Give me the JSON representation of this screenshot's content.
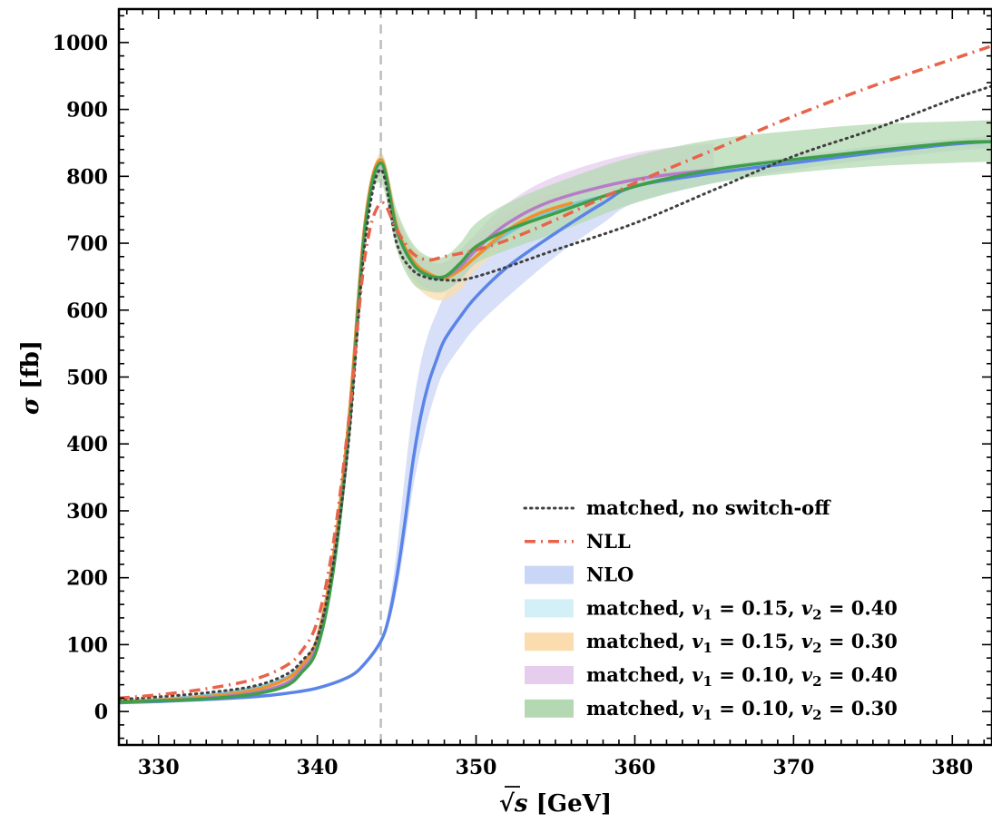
{
  "chart_data": {
    "type": "line",
    "xlabel": "√s [GeV]",
    "xlabel_main": "[GeV]",
    "xlabel_sqrt_var": "s",
    "ylabel_symbol": "σ",
    "ylabel_unit": "[fb]",
    "xlim": [
      327.5,
      382.5
    ],
    "ylim": [
      -50,
      1050
    ],
    "x_ticks": [
      330,
      340,
      350,
      360,
      370,
      380
    ],
    "y_ticks": [
      0,
      100,
      200,
      300,
      400,
      500,
      600,
      700,
      800,
      900,
      1000
    ],
    "threshold_line_x": 344,
    "grid": false,
    "legend_position": "lower-right",
    "series": [
      {
        "name": "matched, no switch-off",
        "style": "dotted",
        "color": "#404040",
        "x": [
          327.5,
          330,
          333,
          336,
          338,
          339,
          340,
          341,
          342,
          343,
          344,
          345,
          346,
          347,
          348,
          349,
          350,
          352,
          355,
          360,
          365,
          370,
          375,
          380,
          382.5
        ],
        "y": [
          18,
          22,
          28,
          38,
          55,
          75,
          110,
          220,
          410,
          700,
          810,
          700,
          660,
          648,
          645,
          645,
          650,
          665,
          690,
          730,
          780,
          830,
          870,
          915,
          935
        ]
      },
      {
        "name": "NLL",
        "style": "dashdot",
        "color": "#e8634a",
        "x": [
          327.5,
          330,
          333,
          336,
          338,
          339,
          340,
          341,
          342,
          343,
          344,
          345,
          346,
          347,
          348,
          350,
          352,
          355,
          360,
          365,
          370,
          375,
          380,
          382.5
        ],
        "y": [
          20,
          25,
          34,
          48,
          68,
          90,
          135,
          250,
          440,
          680,
          760,
          720,
          685,
          675,
          680,
          690,
          705,
          735,
          790,
          840,
          890,
          935,
          975,
          995
        ]
      },
      {
        "name": "NLO",
        "style": "band",
        "color": "#5b84e8",
        "band_color": "#c9d6f6",
        "x": [
          327.5,
          330,
          333,
          336,
          338,
          340,
          342,
          343,
          344,
          344.5,
          345,
          345.5,
          346,
          346.5,
          347,
          347.5,
          348,
          349,
          350,
          352,
          355,
          358,
          360,
          365,
          370,
          375,
          380,
          382.5
        ],
        "y": [
          13,
          15,
          18,
          22,
          27,
          35,
          52,
          72,
          105,
          140,
          200,
          280,
          370,
          440,
          490,
          525,
          555,
          590,
          620,
          665,
          715,
          760,
          785,
          805,
          820,
          835,
          848,
          852
        ],
        "lower": [
          13,
          15,
          18,
          22,
          27,
          35,
          52,
          72,
          105,
          130,
          180,
          250,
          330,
          390,
          440,
          480,
          510,
          545,
          575,
          620,
          680,
          730,
          760,
          790,
          810,
          825,
          838,
          842
        ],
        "upper": [
          13,
          15,
          18,
          22,
          27,
          35,
          52,
          72,
          105,
          155,
          240,
          350,
          450,
          520,
          565,
          595,
          620,
          650,
          670,
          705,
          745,
          780,
          800,
          815,
          830,
          845,
          856,
          860
        ]
      },
      {
        "name": "matched, v1 = 0.15, v2 = 0.40",
        "style": "band",
        "color": "#7cc7d8",
        "band_color": "#d3f0f6",
        "x": [
          327.5,
          330,
          333,
          336,
          338,
          339,
          340,
          341,
          342,
          343,
          344,
          345,
          346,
          347,
          348,
          349,
          350,
          352,
          355,
          358
        ],
        "y": [
          15,
          18,
          24,
          35,
          50,
          70,
          110,
          230,
          430,
          720,
          820,
          720,
          670,
          650,
          648,
          660,
          680,
          715,
          750,
          770
        ],
        "lower": [
          15,
          18,
          24,
          35,
          50,
          70,
          110,
          230,
          430,
          720,
          800,
          700,
          650,
          630,
          625,
          640,
          660,
          700,
          740,
          760
        ],
        "upper": [
          15,
          18,
          24,
          35,
          50,
          70,
          110,
          230,
          430,
          720,
          830,
          740,
          690,
          670,
          670,
          685,
          700,
          735,
          770,
          790
        ]
      },
      {
        "name": "matched, v1 = 0.15, v2 = 0.30",
        "style": "band",
        "color": "#f0922b",
        "band_color": "#fbdcae",
        "x": [
          327.5,
          330,
          333,
          336,
          338,
          339,
          340,
          341,
          342,
          343,
          344,
          345,
          346,
          347,
          348,
          349,
          350,
          352,
          354,
          356
        ],
        "y": [
          15,
          17,
          22,
          32,
          48,
          68,
          110,
          230,
          440,
          730,
          825,
          725,
          675,
          655,
          648,
          660,
          680,
          720,
          745,
          760
        ],
        "lower": [
          15,
          17,
          22,
          32,
          48,
          68,
          110,
          230,
          440,
          730,
          800,
          700,
          645,
          620,
          615,
          630,
          660,
          700,
          730,
          745
        ],
        "upper": [
          15,
          17,
          22,
          32,
          48,
          68,
          110,
          230,
          440,
          730,
          835,
          745,
          695,
          675,
          670,
          690,
          710,
          745,
          770,
          780
        ]
      },
      {
        "name": "matched, v1 = 0.10, v2 = 0.40",
        "style": "band",
        "color": "#b77bc9",
        "band_color": "#e6cdee",
        "x": [
          327.5,
          330,
          333,
          336,
          338,
          339,
          340,
          341,
          342,
          343,
          344,
          345,
          346,
          347,
          348,
          349,
          350,
          352,
          355,
          360,
          365
        ],
        "y": [
          14,
          16,
          20,
          28,
          42,
          62,
          100,
          215,
          420,
          720,
          820,
          720,
          670,
          652,
          650,
          665,
          690,
          730,
          765,
          795,
          810
        ],
        "lower": [
          14,
          16,
          20,
          28,
          42,
          62,
          100,
          215,
          420,
          720,
          800,
          700,
          650,
          632,
          630,
          645,
          670,
          710,
          745,
          780,
          800
        ],
        "upper": [
          14,
          16,
          20,
          28,
          42,
          62,
          100,
          215,
          420,
          720,
          830,
          740,
          690,
          672,
          672,
          690,
          715,
          760,
          800,
          835,
          850
        ]
      },
      {
        "name": "matched, v1 = 0.10, v2 = 0.30",
        "style": "band",
        "color": "#3e9f4a",
        "band_color": "#b4d9b2",
        "x": [
          327.5,
          330,
          333,
          336,
          338,
          339,
          340,
          341,
          342,
          343,
          344,
          345,
          346,
          347,
          348,
          349,
          350,
          352,
          355,
          360,
          365,
          370,
          375,
          380,
          382.5
        ],
        "y": [
          14,
          16,
          19,
          26,
          38,
          58,
          95,
          210,
          420,
          720,
          820,
          720,
          670,
          652,
          650,
          670,
          695,
          720,
          745,
          785,
          810,
          825,
          838,
          850,
          852
        ],
        "lower": [
          14,
          16,
          19,
          26,
          38,
          58,
          95,
          210,
          420,
          720,
          790,
          690,
          640,
          628,
          628,
          645,
          670,
          690,
          715,
          760,
          790,
          805,
          815,
          820,
          822
        ],
        "upper": [
          14,
          16,
          19,
          26,
          38,
          58,
          95,
          210,
          420,
          720,
          830,
          750,
          700,
          680,
          680,
          700,
          730,
          760,
          790,
          830,
          855,
          868,
          878,
          882,
          884
        ]
      }
    ],
    "legend": {
      "entries": [
        {
          "label": "matched, no switch-off",
          "swatch": "dotted",
          "color": "#404040"
        },
        {
          "label": "NLL",
          "swatch": "dashdot",
          "color": "#e8634a"
        },
        {
          "label": "NLO",
          "swatch": "patch",
          "color": "#c9d6f6"
        },
        {
          "label": "matched, v1 = 0.15, v2 = 0.40",
          "prefix": "matched,",
          "v1": "0.15",
          "v2": "0.40",
          "swatch": "patch",
          "color": "#d3f0f6"
        },
        {
          "label": "matched, v1 = 0.15, v2 = 0.30",
          "prefix": "matched,",
          "v1": "0.15",
          "v2": "0.30",
          "swatch": "patch",
          "color": "#fbdcae"
        },
        {
          "label": "matched, v1 = 0.10, v2 = 0.40",
          "prefix": "matched,",
          "v1": "0.10",
          "v2": "0.40",
          "swatch": "patch",
          "color": "#e6cdee"
        },
        {
          "label": "matched, v1 = 0.10, v2 = 0.30",
          "prefix": "matched,",
          "v1": "0.10",
          "v2": "0.30",
          "swatch": "patch",
          "color": "#b4d9b2"
        }
      ]
    }
  }
}
